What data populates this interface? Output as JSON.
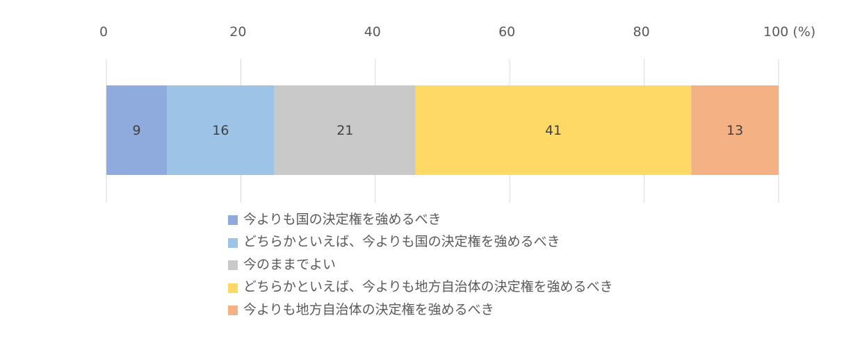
{
  "chart_data": {
    "type": "bar",
    "orientation": "horizontal",
    "stacked": true,
    "x_unit_label": "(%)",
    "xlim": [
      0,
      100
    ],
    "x_ticks": [
      0,
      20,
      40,
      60,
      80,
      100
    ],
    "x_tick_labels": [
      "0",
      "20",
      "40",
      "60",
      "80",
      "100 (%)"
    ],
    "axis_position": "top",
    "grid": true,
    "legend_placement": "bottom",
    "series": [
      {
        "name": "今よりも国の決定権を強めるべき",
        "value": 9,
        "label": "9",
        "color": "#8faadc"
      },
      {
        "name": "どちらかといえば、今よりも国の決定権を強めるべき",
        "value": 16,
        "label": "16",
        "color": "#9dc3e6"
      },
      {
        "name": "今のままでよい",
        "value": 21,
        "label": "21",
        "color": "#c9c9c9"
      },
      {
        "name": "どちらかといえば、今よりも地方自治体の決定権を強めるべき",
        "value": 41,
        "label": "41",
        "color": "#ffd966"
      },
      {
        "name": "今よりも地方自治体の決定権を強めるべき",
        "value": 13,
        "label": "13",
        "color": "#f4b183"
      }
    ]
  }
}
